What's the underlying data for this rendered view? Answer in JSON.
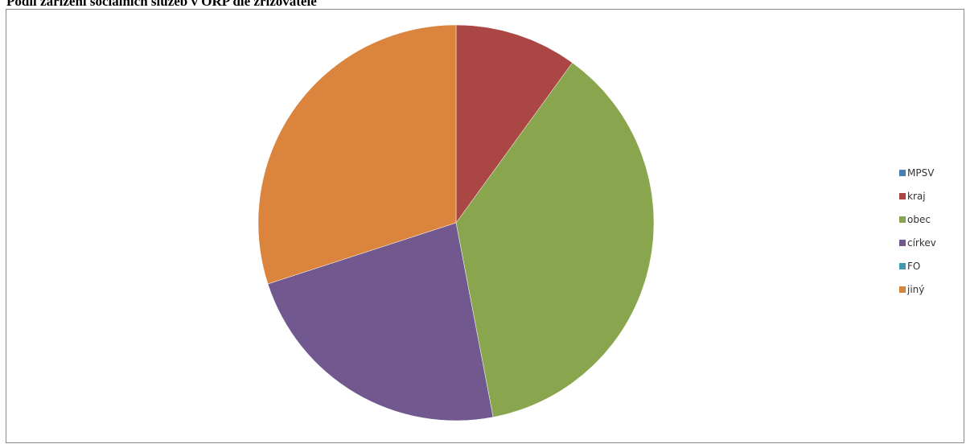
{
  "page": {
    "title": "Podíl zařízení sociálních služeb v ORP dle zřizovatele"
  },
  "chart_data": {
    "type": "pie",
    "title": "",
    "categories": [
      "MPSV",
      "kraj",
      "obec",
      "církev",
      "FO",
      "jiný"
    ],
    "values": [
      0,
      10,
      37,
      23,
      0,
      30
    ],
    "unit": "%",
    "start_angle_deg": 0,
    "direction": "clockwise",
    "colors": [
      "#4a7ebb",
      "#aa4644",
      "#89a54e",
      "#71588f",
      "#4198af",
      "#db843d"
    ],
    "legend_position": "right"
  }
}
